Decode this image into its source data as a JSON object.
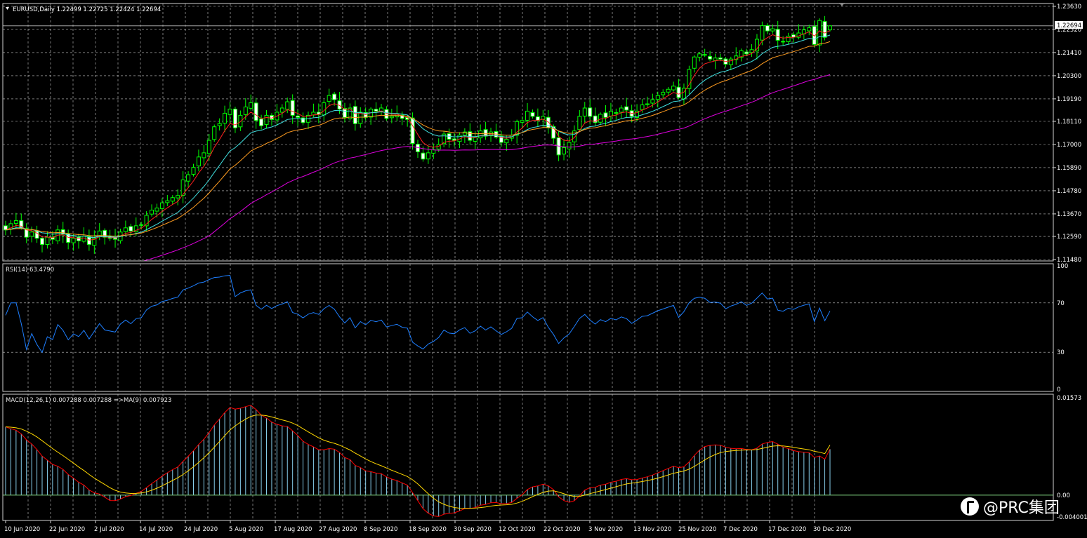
{
  "header": {
    "symbol_line": "EURUSD,Daily  1.22499 1.22725 1.22424 1.22694"
  },
  "price_panel": {
    "current_price": "1.22694",
    "ticks": [
      "1.23630",
      "1.22520",
      "1.21410",
      "1.20300",
      "1.19190",
      "1.18110",
      "1.17000",
      "1.15890",
      "1.14780",
      "1.13670",
      "1.12590",
      "1.11480"
    ]
  },
  "rsi_panel": {
    "label": "RSI(14) 63.4790",
    "ticks": [
      "100",
      "70",
      "30",
      "0"
    ]
  },
  "macd_panel": {
    "label": "MACD(12,26,1) 0.007288 0.007288  =>MA(9) 0.007923",
    "ticks": [
      "0.01573",
      "0.00",
      "-0.004001"
    ]
  },
  "x_ticks": [
    "10 Jun 2020",
    "22 Jun 2020",
    "2 Jul 2020",
    "14 Jul 2020",
    "24 Jul 2020",
    "5 Aug 2020",
    "17 Aug 2020",
    "27 Aug 2020",
    "8 Sep 2020",
    "18 Sep 2020",
    "30 Sep 2020",
    "12 Oct 2020",
    "22 Oct 2020",
    "3 Nov 2020",
    "13 Nov 2020",
    "25 Nov 2020",
    "7 Dec 2020",
    "17 Dec 2020",
    "30 Dec 2020"
  ],
  "watermark": "@PRC集团",
  "colors": {
    "background": "#000000",
    "grid": "#c8c8c8",
    "candle": "#00ff00",
    "candle_body_up": "#000000",
    "candle_body_down": "#ffffff",
    "ma_fast": "#ff2020",
    "ma_mid": "#40e0e0",
    "ma_slow": "#ff9c20",
    "ma_long": "#e000e0",
    "rsi": "#1e7fff",
    "macd_hist": "#87ceeb",
    "macd_line": "#ff0000",
    "macd_signal": "#ffd700"
  },
  "chart_data": {
    "type": "candlestick",
    "symbol": "EURUSD",
    "timeframe": "Daily",
    "last_bar": {
      "open": 1.22499,
      "high": 1.22725,
      "low": 1.22424,
      "close": 1.22694
    },
    "y_range": [
      1.1148,
      1.2363
    ],
    "rsi": {
      "period": 14,
      "value": 63.479,
      "levels": [
        70,
        30
      ],
      "range": [
        0,
        100
      ]
    },
    "macd": {
      "fast": 12,
      "slow": 26,
      "signal_period": 1,
      "main": 0.007288,
      "signal": 0.007288,
      "ma9": 0.007923,
      "range": [
        -0.004001,
        0.01573
      ]
    },
    "closes": [
      1.129,
      1.132,
      1.1335,
      1.13,
      1.1255,
      1.128,
      1.125,
      1.122,
      1.1255,
      1.1245,
      1.129,
      1.127,
      1.123,
      1.125,
      1.1238,
      1.126,
      1.122,
      1.125,
      1.1285,
      1.1255,
      1.125,
      1.1245,
      1.128,
      1.13,
      1.1285,
      1.131,
      1.1315,
      1.136,
      1.1385,
      1.1395,
      1.142,
      1.143,
      1.1445,
      1.1455,
      1.153,
      1.1555,
      1.159,
      1.164,
      1.166,
      1.172,
      1.1785,
      1.18,
      1.185,
      1.187,
      1.178,
      1.184,
      1.188,
      1.19,
      1.1815,
      1.179,
      1.184,
      1.182,
      1.1855,
      1.1875,
      1.1905,
      1.184,
      1.183,
      1.1805,
      1.184,
      1.1855,
      1.1845,
      1.19,
      1.1935,
      1.1915,
      1.187,
      1.183,
      1.1875,
      1.18,
      1.1855,
      1.183,
      1.187,
      1.186,
      1.1875,
      1.1825,
      1.1835,
      1.1845,
      1.1825,
      1.182,
      1.1705,
      1.1665,
      1.163,
      1.166,
      1.1675,
      1.17,
      1.175,
      1.1725,
      1.172,
      1.1745,
      1.176,
      1.172,
      1.1735,
      1.1765,
      1.174,
      1.176,
      1.1735,
      1.171,
      1.1725,
      1.1745,
      1.181,
      1.1815,
      1.186,
      1.1835,
      1.1815,
      1.1835,
      1.178,
      1.173,
      1.165,
      1.1685,
      1.171,
      1.1765,
      1.1835,
      1.1875,
      1.1835,
      1.1805,
      1.1845,
      1.183,
      1.186,
      1.185,
      1.1875,
      1.1865,
      1.1835,
      1.186,
      1.189,
      1.1895,
      1.1915,
      1.1935,
      1.195,
      1.1965,
      1.198,
      1.1925,
      1.197,
      1.206,
      1.212,
      1.2135,
      1.213,
      1.211,
      1.2115,
      1.211,
      1.2085,
      1.211,
      1.2125,
      1.215,
      1.2135,
      1.2155,
      1.2205,
      1.227,
      1.2245,
      1.2255,
      1.22,
      1.2195,
      1.222,
      1.2215,
      1.2235,
      1.225,
      1.226,
      1.218,
      1.2295,
      1.2214,
      1.2269
    ]
  }
}
